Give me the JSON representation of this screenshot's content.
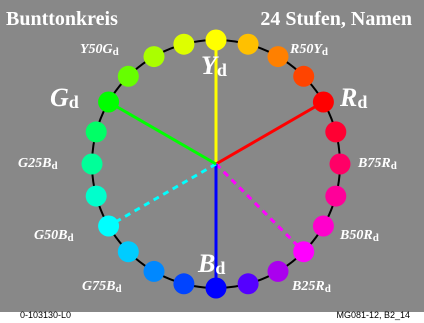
{
  "header": {
    "title_left": "Bunttonkreis",
    "title_right": "24 Stufen, Namen"
  },
  "footer": {
    "left": "0-103130-L0",
    "right": "MG081-12, B2_14"
  },
  "colors": {
    "background": "#888888",
    "text": "#ffffff",
    "ring_stroke": "#000000"
  },
  "hue_circle": {
    "steps": 24,
    "dots": [
      {
        "hue": "Y",
        "color": "#ffff00"
      },
      {
        "hue": "Y-O1",
        "color": "#ffc000"
      },
      {
        "hue": "R50Y",
        "color": "#ff8000"
      },
      {
        "hue": "R-O1",
        "color": "#ff4400"
      },
      {
        "hue": "R",
        "color": "#ff0000"
      },
      {
        "hue": "R-M1",
        "color": "#ff0033"
      },
      {
        "hue": "R-M2",
        "color": "#ff0066"
      },
      {
        "hue": "B75R",
        "color": "#ff0099"
      },
      {
        "hue": "R-M3",
        "color": "#ff00cc"
      },
      {
        "hue": "B50R",
        "color": "#ff00ff"
      },
      {
        "hue": "B25R",
        "color": "#aa00ee"
      },
      {
        "hue": "B-V1",
        "color": "#5500ff"
      },
      {
        "hue": "B",
        "color": "#0000ff"
      },
      {
        "hue": "B-C1",
        "color": "#0044ff"
      },
      {
        "hue": "G75B",
        "color": "#0088ff"
      },
      {
        "hue": "B-C2",
        "color": "#00ccff"
      },
      {
        "hue": "G50B",
        "color": "#00ffff"
      },
      {
        "hue": "G-C1",
        "color": "#00ffcc"
      },
      {
        "hue": "G25B",
        "color": "#00ff99"
      },
      {
        "hue": "G-C2",
        "color": "#00ff66"
      },
      {
        "hue": "G",
        "color": "#00ff00"
      },
      {
        "hue": "Y50G",
        "color": "#66ff00"
      },
      {
        "hue": "G-Y1",
        "color": "#aaff00"
      },
      {
        "hue": "G-Y2",
        "color": "#ddff00"
      }
    ],
    "spokes": [
      {
        "name": "spoke-yellow",
        "to_step": 0,
        "color": "#ffff00",
        "dashed": false
      },
      {
        "name": "spoke-red",
        "to_step": 4,
        "color": "#ff0000",
        "dashed": false
      },
      {
        "name": "spoke-magenta",
        "to_step": 9,
        "color": "#ff00ff",
        "dashed": true
      },
      {
        "name": "spoke-blue",
        "to_step": 12,
        "color": "#0000ff",
        "dashed": false
      },
      {
        "name": "spoke-cyan",
        "to_step": 16,
        "color": "#00ffff",
        "dashed": true
      },
      {
        "name": "spoke-green",
        "to_step": 20,
        "color": "#00ff00",
        "dashed": false
      }
    ],
    "labels": [
      {
        "name": "label-Yd",
        "base": "Y",
        "sub": "d",
        "size": "large"
      },
      {
        "name": "label-Rd",
        "base": "R",
        "sub": "d",
        "size": "large"
      },
      {
        "name": "label-Gd",
        "base": "G",
        "sub": "d",
        "size": "large"
      },
      {
        "name": "label-Bd",
        "base": "B",
        "sub": "d",
        "size": "large"
      },
      {
        "name": "label-Y50Gd",
        "base": "Y50G",
        "sub": "d",
        "size": "small"
      },
      {
        "name": "label-R50Yd",
        "base": "R50Y",
        "sub": "d",
        "size": "small"
      },
      {
        "name": "label-G25Bd",
        "base": "G25B",
        "sub": "d",
        "size": "small"
      },
      {
        "name": "label-B75Rd",
        "base": "B75R",
        "sub": "d",
        "size": "small"
      },
      {
        "name": "label-G50Bd",
        "base": "G50B",
        "sub": "d",
        "size": "small"
      },
      {
        "name": "label-B50Rd",
        "base": "B50R",
        "sub": "d",
        "size": "small"
      },
      {
        "name": "label-G75Bd",
        "base": "G75B",
        "sub": "d",
        "size": "small"
      },
      {
        "name": "label-B25Rd",
        "base": "B25R",
        "sub": "d",
        "size": "small"
      }
    ]
  }
}
